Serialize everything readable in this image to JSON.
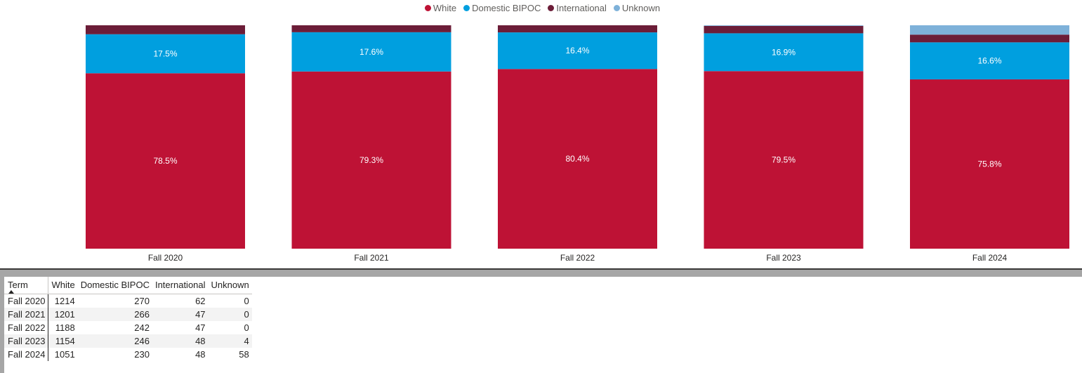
{
  "chart_data": {
    "type": "bar",
    "stacked": "100%",
    "categories": [
      "Fall 2020",
      "Fall 2021",
      "Fall 2022",
      "Fall 2023",
      "Fall 2024"
    ],
    "series": [
      {
        "name": "White",
        "color": "#be1235",
        "values": [
          1214,
          1201,
          1188,
          1154,
          1051
        ],
        "labels": [
          "78.5%",
          "79.3%",
          "80.4%",
          "79.5%",
          "75.8%"
        ]
      },
      {
        "name": "Domestic BIPOC",
        "color": "#009fdf",
        "values": [
          270,
          266,
          242,
          246,
          230
        ],
        "labels": [
          "17.5%",
          "17.6%",
          "16.4%",
          "16.9%",
          "16.6%"
        ]
      },
      {
        "name": "International",
        "color": "#6c1d38",
        "values": [
          62,
          47,
          47,
          48,
          48
        ],
        "labels": [
          "",
          "",
          "",
          "",
          ""
        ]
      },
      {
        "name": "Unknown",
        "color": "#7eb1d9",
        "values": [
          0,
          0,
          0,
          4,
          58
        ],
        "labels": [
          "",
          "",
          "",
          "",
          ""
        ]
      }
    ],
    "legend_position": "top-center",
    "ylim": [
      0,
      1
    ],
    "grid": false
  },
  "table": {
    "columns": [
      "Term",
      "White",
      "Domestic BIPOC",
      "International",
      "Unknown"
    ],
    "rows": [
      [
        "Fall 2020",
        "1214",
        "270",
        "62",
        "0"
      ],
      [
        "Fall 2021",
        "1201",
        "266",
        "47",
        "0"
      ],
      [
        "Fall 2022",
        "1188",
        "242",
        "47",
        "0"
      ],
      [
        "Fall 2023",
        "1154",
        "246",
        "48",
        "4"
      ],
      [
        "Fall 2024",
        "1051",
        "230",
        "48",
        "58"
      ]
    ],
    "sort_column": "Term",
    "sort_direction": "ascending"
  }
}
